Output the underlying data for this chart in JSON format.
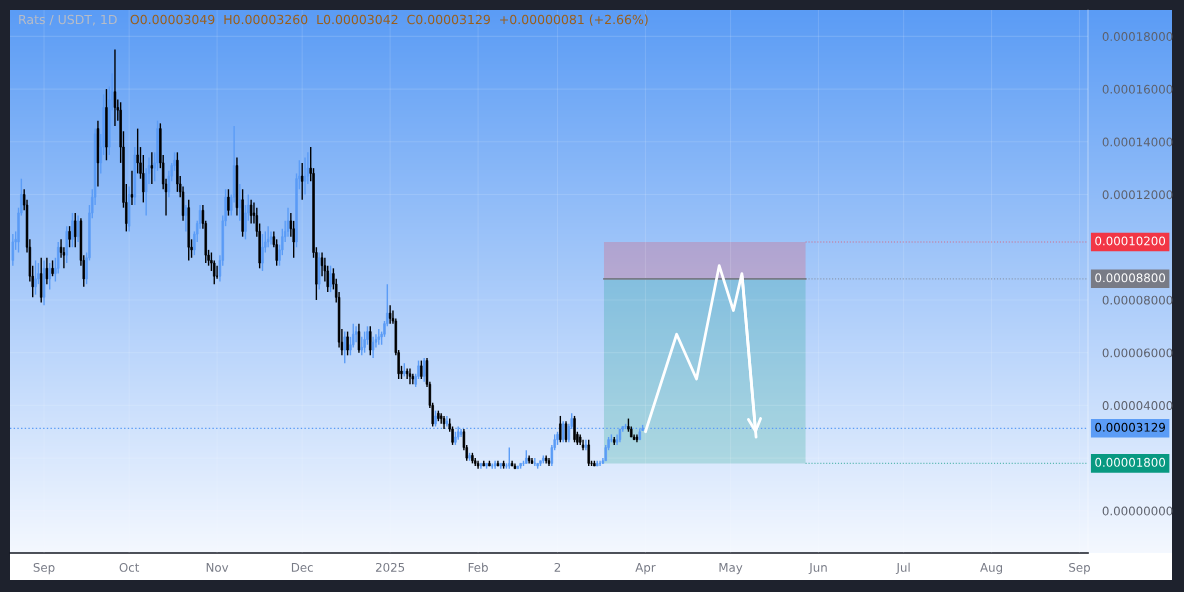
{
  "chart_data": {
    "type": "candlestick",
    "title": "Rats / USDT, 1D",
    "subtitle": "O0.00003049  H0.00003260  L0.00003042  C0.00003129  +0.00000081 (+2.66%)",
    "colors": [
      "#5b9cf6",
      "#5b9cf6",
      "#5b9cf6",
      "#5b9cf6",
      "#000000",
      "#000000",
      "#000000",
      "#000000",
      "#5b9cf6",
      "#5b9cf6",
      "#000000",
      "#5b9cf6",
      "#000000",
      "#5b9cf6",
      "#000000",
      "#5b9cf6",
      "#5b9cf6",
      "#000000",
      "#000000",
      "#5b9cf6",
      "#000000",
      "#5b9cf6",
      "#000000",
      "#5b9cf6",
      "#000000",
      "#000000",
      "#5b9cf6",
      "#5b9cf6",
      "#5b9cf6",
      "#5b9cf6",
      "#000000",
      "#5b9cf6",
      "#5b9cf6",
      "#000000",
      "#5b9cf6",
      "#5b9cf6",
      "#000000",
      "#000000",
      "#000000",
      "#000000",
      "#000000",
      "#5b9cf6",
      "#000000",
      "#5b9cf6",
      "#000000",
      "#000000",
      "#000000",
      "#5b9cf6",
      "#5b9cf6",
      "#000000",
      "#5b9cf6",
      "#5b9cf6",
      "#000000",
      "#000000",
      "#000000",
      "#5b9cf6",
      "#5b9cf6",
      "#5b9cf6",
      "#000000",
      "#000000",
      "#000000",
      "#5b9cf6",
      "#000000",
      "#000000",
      "#5b9cf6",
      "#5b9cf6",
      "#5b9cf6",
      "#000000",
      "#000000",
      "#000000",
      "#000000",
      "#000000",
      "#000000",
      "#5b9cf6",
      "#5b9cf6",
      "#5b9cf6",
      "#000000",
      "#5b9cf6",
      "#5b9cf6",
      "#000000",
      "#5b9cf6",
      "#000000",
      "#5b9cf6",
      "#5b9cf6",
      "#000000",
      "#000000",
      "#000000",
      "#000000",
      "#5b9cf6",
      "#5b9cf6",
      "#5b9cf6",
      "#5b9cf6",
      "#000000",
      "#000000",
      "#5b9cf6",
      "#5b9cf6",
      "#5b9cf6",
      "#5b9cf6",
      "#000000",
      "#000000",
      "#5b9cf6",
      "#5b9cf6",
      "#000000",
      "#5b9cf6",
      "#5b9cf6",
      "#000000",
      "#000000",
      "#000000",
      "#5b9cf6",
      "#000000",
      "#000000",
      "#000000",
      "#5b9cf6",
      "#000000",
      "#000000",
      "#000000",
      "#000000",
      "#5b9cf6",
      "#000000",
      "#5b9cf6",
      "#5b9cf6",
      "#5b9cf6",
      "#000000",
      "#5b9cf6",
      "#5b9cf6",
      "#5b9cf6",
      "#000000",
      "#5b9cf6",
      "#5b9cf6",
      "#5b9cf6",
      "#5b9cf6",
      "#5b9cf6",
      "#5b9cf6",
      "#000000",
      "#000000",
      "#000000",
      "#000000",
      "#000000",
      "#5b9cf6",
      "#000000",
      "#000000",
      "#000000",
      "#5b9cf6",
      "#5b9cf6",
      "#000000",
      "#5b9cf6",
      "#000000",
      "#000000",
      "#000000",
      "#5b9cf6",
      "#000000",
      "#000000",
      "#000000",
      "#5b9cf6",
      "#000000",
      "#000000",
      "#5b9cf6",
      "#5b9cf6",
      "#5b9cf6",
      "#000000",
      "#000000",
      "#5b9cf6",
      "#000000",
      "#000000",
      "#000000",
      "#5b9cf6",
      "#000000",
      "#5b9cf6",
      "#000000",
      "#5b9cf6",
      "#5b9cf6",
      "#000000",
      "#5b9cf6",
      "#000000",
      "#5b9cf6",
      "#5b9cf6",
      "#000000",
      "#000000",
      "#5b9cf6",
      "#5b9cf6",
      "#5b9cf6",
      "#5b9cf6",
      "#000000",
      "#000000",
      "#5b9cf6",
      "#5b9cf6",
      "#5b9cf6",
      "#5b9cf6",
      "#000000",
      "#000000",
      "#5b9cf6",
      "#5b9cf6",
      "#5b9cf6",
      "#000000",
      "#5b9cf6",
      "#000000",
      "#5b9cf6",
      "#5b9cf6",
      "#000000",
      "#000000",
      "#000000",
      "#000000",
      "#5b9cf6",
      "#000000",
      "#000000",
      "#000000",
      "#5b9cf6",
      "#5b9cf6",
      "#5b9cf6",
      "#5b9cf6",
      "#5b9cf6",
      "#5b9cf6",
      "#000000",
      "#5b9cf6",
      "#5b9cf6",
      "#5b9cf6",
      "#5b9cf6",
      "#000000",
      "#000000",
      "#000000",
      "#000000",
      "#5b9cf6",
      "#5b9cf6"
    ],
    "x": [
      "2024-08-21",
      "2024-08-22",
      "2024-08-23",
      "2024-08-24",
      "2024-08-25",
      "2024-08-26",
      "2024-08-27",
      "2024-08-28",
      "2024-08-29",
      "2024-08-30",
      "2024-08-31",
      "2024-09-01",
      "2024-09-02",
      "2024-09-03",
      "2024-09-04",
      "2024-09-05",
      "2024-09-06",
      "2024-09-07",
      "2024-09-08",
      "2024-09-09",
      "2024-09-10",
      "2024-09-11",
      "2024-09-12",
      "2024-09-13",
      "2024-09-14",
      "2024-09-15",
      "2024-09-16",
      "2024-09-17",
      "2024-09-18",
      "2024-09-19",
      "2024-09-20",
      "2024-09-21",
      "2024-09-22",
      "2024-09-23",
      "2024-09-24",
      "2024-09-25",
      "2024-09-26",
      "2024-09-27",
      "2024-09-28",
      "2024-09-29",
      "2024-09-30",
      "2024-10-01",
      "2024-10-02",
      "2024-10-03",
      "2024-10-04",
      "2024-10-05",
      "2024-10-06",
      "2024-10-07",
      "2024-10-08",
      "2024-10-09",
      "2024-10-10",
      "2024-10-11",
      "2024-10-12",
      "2024-10-13",
      "2024-10-14",
      "2024-10-15",
      "2024-10-16",
      "2024-10-17",
      "2024-10-18",
      "2024-10-19",
      "2024-10-20",
      "2024-10-21",
      "2024-10-22",
      "2024-10-23",
      "2024-10-24",
      "2024-10-25",
      "2024-10-26",
      "2024-10-27",
      "2024-10-28",
      "2024-10-29",
      "2024-10-30",
      "2024-10-31",
      "2024-11-01",
      "2024-11-02",
      "2024-11-03",
      "2024-11-04",
      "2024-11-05",
      "2024-11-06",
      "2024-11-07",
      "2024-11-08",
      "2024-11-09",
      "2024-11-10",
      "2024-11-11",
      "2024-11-12",
      "2024-11-13",
      "2024-11-14",
      "2024-11-15",
      "2024-11-16",
      "2024-11-17",
      "2024-11-18",
      "2024-11-19",
      "2024-11-20",
      "2024-11-21",
      "2024-11-22",
      "2024-11-23",
      "2024-11-24",
      "2024-11-25",
      "2024-11-26",
      "2024-11-27",
      "2024-11-28",
      "2024-11-29",
      "2024-11-30",
      "2024-12-01",
      "2024-12-02",
      "2024-12-03",
      "2024-12-04",
      "2024-12-05",
      "2024-12-06",
      "2024-12-07",
      "2024-12-08",
      "2024-12-09",
      "2024-12-10",
      "2024-12-11",
      "2024-12-12",
      "2024-12-13",
      "2024-12-14",
      "2024-12-15",
      "2024-12-16",
      "2024-12-17",
      "2024-12-18",
      "2024-12-19",
      "2024-12-20",
      "2024-12-21",
      "2024-12-22",
      "2024-12-23",
      "2024-12-24",
      "2024-12-25",
      "2024-12-26",
      "2024-12-27",
      "2024-12-28",
      "2024-12-29",
      "2024-12-30",
      "2024-12-31",
      "2025-01-01",
      "2025-01-02",
      "2025-01-03",
      "2025-01-04",
      "2025-01-05",
      "2025-01-06",
      "2025-01-07",
      "2025-01-08",
      "2025-01-09",
      "2025-01-10",
      "2025-01-11",
      "2025-01-12",
      "2025-01-13",
      "2025-01-14",
      "2025-01-15",
      "2025-01-16",
      "2025-01-17",
      "2025-01-18",
      "2025-01-19",
      "2025-01-20",
      "2025-01-21",
      "2025-01-22",
      "2025-01-23",
      "2025-01-24",
      "2025-01-25",
      "2025-01-26",
      "2025-01-27",
      "2025-01-28",
      "2025-01-29",
      "2025-01-30",
      "2025-01-31",
      "2025-02-01",
      "2025-02-02",
      "2025-02-03",
      "2025-02-04",
      "2025-02-05",
      "2025-02-06",
      "2025-02-07",
      "2025-02-08",
      "2025-02-09",
      "2025-02-10",
      "2025-02-11",
      "2025-02-12",
      "2025-02-13",
      "2025-02-14",
      "2025-02-15",
      "2025-02-16",
      "2025-02-17",
      "2025-02-18",
      "2025-02-19",
      "2025-02-20",
      "2025-02-21",
      "2025-02-22",
      "2025-02-23",
      "2025-02-24",
      "2025-02-25",
      "2025-02-26",
      "2025-02-27",
      "2025-02-28",
      "2025-03-01",
      "2025-03-02",
      "2025-03-03",
      "2025-03-04",
      "2025-03-05",
      "2025-03-06",
      "2025-03-07",
      "2025-03-08",
      "2025-03-09",
      "2025-03-10",
      "2025-03-11",
      "2025-03-12",
      "2025-03-13",
      "2025-03-14",
      "2025-03-15",
      "2025-03-16",
      "2025-03-17",
      "2025-03-18",
      "2025-03-19",
      "2025-03-20",
      "2025-03-21",
      "2025-03-22",
      "2025-03-23",
      "2025-03-24",
      "2025-03-25",
      "2025-03-26",
      "2025-03-27",
      "2025-03-28",
      "2025-03-29",
      "2025-03-30",
      "2025-03-31"
    ],
    "ohlc": [
      [
        9.5e-05,
        0.000105,
        9.3e-05,
        0.000102
      ],
      [
        0.000102,
        0.000106,
        9.9e-05,
        0.000103
      ],
      [
        0.000102,
        0.000115,
        9.8e-05,
        0.000113
      ],
      [
        0.000113,
        0.000126,
        0.000112,
        0.00012
      ],
      [
        0.00012,
        0.000122,
        0.000114,
        0.000116
      ],
      [
        0.000116,
        0.000118,
        9.8e-05,
        0.0001
      ],
      [
        0.0001,
        0.000103,
        8.7e-05,
        8.9e-05
      ],
      [
        8.9e-05,
        9.3e-05,
        8.1e-05,
        8.5e-05
      ],
      [
        8.5e-05,
        9.5e-05,
        8.2e-05,
        8.8e-05
      ],
      [
        8.8e-05,
        9.4e-05,
        8.6e-05,
        9e-05
      ],
      [
        9e-05,
        9.6e-05,
        7.9e-05,
        8.1e-05
      ],
      [
        8.1e-05,
        9.5e-05,
        7.8e-05,
        9.2e-05
      ],
      [
        9.2e-05,
        9.6e-05,
        8.6e-05,
        8.8e-05
      ],
      [
        8.8e-05,
        9.4e-05,
        8.4e-05,
        9.2e-05
      ],
      [
        9.2e-05,
        9.5e-05,
        8.9e-05,
        9e-05
      ],
      [
        9e-05,
        9.6e-05,
        8.7e-05,
        9.2e-05
      ],
      [
        9.2e-05,
        0.000102,
        9e-05,
        0.0001
      ],
      [
        0.0001,
        0.000103,
        9.6e-05,
        9.8e-05
      ],
      [
        9.8e-05,
        0.0001,
        9.2e-05,
        9.7e-05
      ],
      [
        9.7e-05,
        0.000108,
        9.4e-05,
        0.000106
      ],
      [
        0.000106,
        0.000108,
        0.0001,
        0.000103
      ],
      [
        0.000103,
        0.000113,
        0.0001,
        0.00011
      ],
      [
        0.00011,
        0.000113,
        0.0001,
        0.000104
      ],
      [
        0.000104,
        0.000112,
        0.000102,
        0.00011
      ],
      [
        0.00011,
        0.000111,
        9.3e-05,
        9.5e-05
      ],
      [
        9.5e-05,
        9.7e-05,
        8.5e-05,
        8.8e-05
      ],
      [
        8.8e-05,
        9.8e-05,
        8.6e-05,
        9.6e-05
      ],
      [
        9.6e-05,
        0.000116,
        9.5e-05,
        0.000113
      ],
      [
        0.000113,
        0.000122,
        0.000111,
        0.000119
      ],
      [
        0.000119,
        0.000145,
        0.000116,
        0.000143
      ],
      [
        0.000145,
        0.000148,
        0.000123,
        0.000132
      ],
      [
        0.000132,
        0.000143,
        0.000128,
        0.000138
      ],
      [
        0.000138,
        0.000158,
        0.000135,
        0.000153
      ],
      [
        0.000153,
        0.00016,
        0.000133,
        0.000138
      ],
      [
        0.000138,
        0.000161,
        0.000135,
        0.000156
      ],
      [
        0.000156,
        0.000166,
        0.000152,
        0.000159
      ],
      [
        0.000159,
        0.000175,
        0.000146,
        0.000153
      ],
      [
        0.000153,
        0.000156,
        0.000148,
        0.000152
      ],
      [
        0.000152,
        0.000155,
        0.000132,
        0.000138
      ],
      [
        0.000138,
        0.000144,
        0.000115,
        0.000117
      ],
      [
        0.000117,
        0.000124,
        0.000106,
        0.000109
      ],
      [
        0.000108,
        0.000123,
        0.000106,
        0.00012
      ],
      [
        0.00012,
        0.000129,
        0.000116,
        0.000119
      ],
      [
        0.000119,
        0.000138,
        0.000116,
        0.000135
      ],
      [
        0.000135,
        0.000145,
        0.000128,
        0.000132
      ],
      [
        0.000132,
        0.000138,
        0.000126,
        0.000128
      ],
      [
        0.000128,
        0.000135,
        0.000117,
        0.000121
      ],
      [
        0.000121,
        0.00013,
        0.000112,
        0.000128
      ],
      [
        0.000128,
        0.000134,
        0.000124,
        0.000131
      ],
      [
        0.000131,
        0.000136,
        0.000124,
        0.00013
      ],
      [
        0.00013,
        0.000136,
        0.000125,
        0.000132
      ],
      [
        0.000132,
        0.000148,
        0.000129,
        0.000145
      ],
      [
        0.000145,
        0.000147,
        0.00013,
        0.000132
      ],
      [
        0.000132,
        0.000135,
        0.000122,
        0.000124
      ],
      [
        0.000124,
        0.000126,
        0.000112,
        0.000121
      ],
      [
        0.000121,
        0.000129,
        0.000119,
        0.000127
      ],
      [
        0.000127,
        0.000132,
        0.000125,
        0.000131
      ],
      [
        0.000131,
        0.000136,
        0.000129,
        0.000133
      ],
      [
        0.000133,
        0.000136,
        0.000121,
        0.000124
      ],
      [
        0.000124,
        0.000127,
        0.000119,
        0.000121
      ],
      [
        0.000121,
        0.000123,
        0.00011,
        0.000112
      ],
      [
        0.000112,
        0.000116,
        0.000106,
        0.000115
      ],
      [
        0.000115,
        0.000118,
        9.5e-05,
        0.0001
      ],
      [
        0.0001,
        0.000103,
        9.6e-05,
        9.9e-05
      ],
      [
        9.9e-05,
        0.000106,
        9.7e-05,
        0.000105
      ],
      [
        0.000105,
        0.00011,
        0.000102,
        0.000109
      ],
      [
        0.000109,
        0.000116,
        0.000107,
        0.000114
      ],
      [
        0.000114,
        0.000116,
        0.000107,
        0.000109
      ],
      [
        0.000109,
        0.00011,
        9.4e-05,
        9.7e-05
      ],
      [
        9.7e-05,
        9.9e-05,
        9.3e-05,
        9.5e-05
      ],
      [
        9.5e-05,
        9.8e-05,
        9.1e-05,
        9.4e-05
      ],
      [
        9.4e-05,
        9.5e-05,
        8.6e-05,
        8.9e-05
      ],
      [
        8.9e-05,
        9.3e-05,
        8.8e-05,
        8.9e-05
      ],
      [
        8.9e-05,
        9.7e-05,
        8.7e-05,
        9.5e-05
      ],
      [
        9.5e-05,
        0.000112,
        9.3e-05,
        0.00011
      ],
      [
        0.00011,
        0.000122,
        0.000108,
        0.000119
      ],
      [
        0.000119,
        0.000122,
        0.000112,
        0.000114
      ],
      [
        0.000114,
        0.00012,
        0.000112,
        0.000119
      ],
      [
        0.000119,
        0.000146,
        0.000117,
        0.000131
      ],
      [
        0.000131,
        0.000134,
        0.000112,
        0.000115
      ],
      [
        0.000115,
        0.000124,
        0.00011,
        0.000118
      ],
      [
        0.000118,
        0.000122,
        0.000104,
        0.000106
      ],
      [
        0.000106,
        0.000116,
        0.000103,
        0.000113
      ],
      [
        0.000113,
        0.00012,
        0.00011,
        0.000116
      ],
      [
        0.000116,
        0.000118,
        0.000109,
        0.000112
      ],
      [
        0.000113,
        0.000117,
        0.000109,
        0.000112
      ],
      [
        0.000112,
        0.000115,
        0.000104,
        0.000106
      ],
      [
        0.000106,
        0.000109,
        9.2e-05,
        9.4e-05
      ],
      [
        9.4e-05,
        0.000105,
        9.1e-05,
        0.0001
      ],
      [
        0.0001,
        0.000106,
        9.8e-05,
        0.000102
      ],
      [
        0.000102,
        0.000108,
        0.0001,
        0.000103
      ],
      [
        0.000103,
        0.000106,
        0.000101,
        0.000104
      ],
      [
        0.000104,
        0.000106,
        0.0001,
        0.000101
      ],
      [
        0.000101,
        0.000103,
        9.3e-05,
        9.5e-05
      ],
      [
        9.5e-05,
        0.000101,
        9.3e-05,
        9.9e-05
      ],
      [
        9.9e-05,
        0.000107,
        9.7e-05,
        0.000104
      ],
      [
        0.000104,
        0.00011,
        0.000102,
        0.000106
      ],
      [
        0.000106,
        0.000115,
        0.000104,
        0.00011
      ],
      [
        0.00011,
        0.000113,
        0.000104,
        0.000107
      ],
      [
        0.000107,
        0.00011,
        9.6e-05,
        0.000102
      ],
      [
        0.000102,
        0.000128,
        0.0001,
        0.000126
      ],
      [
        0.000126,
        0.000133,
        0.000122,
        0.000127
      ],
      [
        0.000127,
        0.000132,
        0.000118,
        0.000125
      ],
      [
        0.000125,
        0.000134,
        0.00012,
        0.000127
      ],
      [
        0.000127,
        0.000136,
        0.000124,
        0.00013
      ],
      [
        0.00013,
        0.000138,
        0.000125,
        0.000128
      ],
      [
        0.000128,
        0.00013,
        9.6e-05,
        9.8e-05
      ],
      [
        9.8e-05,
        0.0001,
        8e-05,
        8.6e-05
      ],
      [
        8.6e-05,
        9.8e-05,
        8.4e-05,
        9.6e-05
      ],
      [
        9.6e-05,
        9.8e-05,
        8.9e-05,
        9.3e-05
      ],
      [
        9.3e-05,
        9.6e-05,
        8.7e-05,
        9.1e-05
      ],
      [
        9.1e-05,
        9.3e-05,
        8.3e-05,
        8.5e-05
      ],
      [
        8.5e-05,
        9.3e-05,
        8.3e-05,
        9e-05
      ],
      [
        9e-05,
        9.2e-05,
        8.4e-05,
        8.6e-05
      ],
      [
        8.6e-05,
        8.8e-05,
        7.9e-05,
        8.1e-05
      ],
      [
        8.1e-05,
        8.3e-05,
        6.2e-05,
        6.4e-05
      ],
      [
        6.4e-05,
        6.9e-05,
        5.9e-05,
        6.1e-05
      ],
      [
        6.1e-05,
        6.8e-05,
        5.6e-05,
        6.6e-05
      ],
      [
        6.6e-05,
        6.8e-05,
        5.9e-05,
        6.1e-05
      ],
      [
        6.1e-05,
        6.6e-05,
        5.9e-05,
        6.3e-05
      ],
      [
        6.3e-05,
        7.1e-05,
        6.2e-05,
        6.7e-05
      ],
      [
        6.7e-05,
        7e-05,
        6.4e-05,
        6.8e-05
      ],
      [
        6.8e-05,
        7.1e-05,
        6e-05,
        6.1e-05
      ],
      [
        6.1e-05,
        6.6e-05,
        5.9e-05,
        6.2e-05
      ],
      [
        6.2e-05,
        6.8e-05,
        6e-05,
        6.5e-05
      ],
      [
        6.5e-05,
        7e-05,
        6.3e-05,
        6.8e-05
      ],
      [
        6.8e-05,
        7e-05,
        5.9e-05,
        6.1e-05
      ],
      [
        6.1e-05,
        6.6e-05,
        5.8e-05,
        6.4e-05
      ],
      [
        6.4e-05,
        6.7e-05,
        6.2e-05,
        6.5e-05
      ],
      [
        6.5e-05,
        6.9e-05,
        6.3e-05,
        6.6e-05
      ],
      [
        6.6e-05,
        6.8e-05,
        6.3e-05,
        6.7e-05
      ],
      [
        6.7e-05,
        7.2e-05,
        6.6e-05,
        7.1e-05
      ],
      [
        7.1e-05,
        8.6e-05,
        7e-05,
        7.5e-05
      ],
      [
        7.5e-05,
        7.8e-05,
        7.1e-05,
        7.3e-05
      ],
      [
        7.3e-05,
        7.6e-05,
        7.1e-05,
        7.2e-05
      ],
      [
        7.2e-05,
        7.3e-05,
        5.9e-05,
        6e-05
      ],
      [
        6e-05,
        6.1e-05,
        5e-05,
        5.2e-05
      ],
      [
        5.3e-05,
        5.5e-05,
        5e-05,
        5.2e-05
      ],
      [
        5.2e-05,
        5.6e-05,
        5.1e-05,
        5.3e-05
      ],
      [
        5.3e-05,
        5.4e-05,
        5e-05,
        5.2e-05
      ],
      [
        5.2e-05,
        5.4e-05,
        4.8e-05,
        5.1e-05
      ],
      [
        5.1e-05,
        5.2e-05,
        4.8e-05,
        5e-05
      ],
      [
        4.8e-05,
        5.2e-05,
        4.7e-05,
        5.1e-05
      ],
      [
        5.1e-05,
        5.7e-05,
        5e-05,
        5.5e-05
      ],
      [
        5.5e-05,
        5.7e-05,
        5e-05,
        5.1e-05
      ],
      [
        5.1e-05,
        5.8e-05,
        4.9e-05,
        5.7e-05
      ],
      [
        5.7e-05,
        5.8e-05,
        4.7e-05,
        4.8e-05
      ],
      [
        4.8e-05,
        4.9e-05,
        3.9e-05,
        4e-05
      ],
      [
        4e-05,
        4.1e-05,
        3.2e-05,
        3.3e-05
      ],
      [
        3.3e-05,
        3.8e-05,
        3.2e-05,
        3.6e-05
      ],
      [
        3.7e-05,
        3.8e-05,
        3.4e-05,
        3.5e-05
      ],
      [
        3.6e-05,
        3.7e-05,
        3.3e-05,
        3.5e-05
      ],
      [
        3.5e-05,
        3.6e-05,
        3.1e-05,
        3.3e-05
      ],
      [
        3.3e-05,
        3.6e-05,
        3.2e-05,
        3.4e-05
      ],
      [
        3.3e-05,
        3.5e-05,
        3e-05,
        3.1e-05
      ],
      [
        3.1e-05,
        3.2e-05,
        2.5e-05,
        2.6e-05
      ],
      [
        2.6e-05,
        3e-05,
        2.5e-05,
        2.8e-05
      ],
      [
        2.8e-05,
        3.2e-05,
        2.7e-05,
        3e-05
      ],
      [
        2.9e-05,
        3.1e-05,
        2.8e-05,
        3e-05
      ],
      [
        3e-05,
        3.1e-05,
        2.3e-05,
        2.4e-05
      ],
      [
        2.4e-05,
        2.5e-05,
        1.9e-05,
        2e-05
      ],
      [
        2e-05,
        2.2e-05,
        1.9e-05,
        2.1e-05
      ],
      [
        2.1e-05,
        2.2e-05,
        1.8e-05,
        1.9e-05
      ],
      [
        1.9e-05,
        2e-05,
        1.7e-05,
        1.8e-05
      ],
      [
        1.8e-05,
        1.9e-05,
        1.6e-05,
        1.7e-05
      ],
      [
        1.7e-05,
        1.8e-05,
        1.6e-05,
        1.8e-05
      ],
      [
        1.8e-05,
        1.9e-05,
        1.7e-05,
        1.7e-05
      ],
      [
        1.7e-05,
        1.8e-05,
        1.6e-05,
        1.8e-05
      ],
      [
        1.8e-05,
        1.9e-05,
        1.7e-05,
        1.7e-05
      ],
      [
        1.7e-05,
        1.8e-05,
        1.6e-05,
        1.7e-05
      ],
      [
        1.7e-05,
        1.9e-05,
        1.6e-05,
        1.8e-05
      ],
      [
        1.8e-05,
        1.9e-05,
        1.7e-05,
        1.7e-05
      ],
      [
        1.7e-05,
        1.8e-05,
        1.6e-05,
        1.8e-05
      ],
      [
        1.8e-05,
        1.9e-05,
        1.6e-05,
        1.7e-05
      ],
      [
        1.7e-05,
        1.8e-05,
        1.6e-05,
        1.7e-05
      ],
      [
        1.7e-05,
        2.4e-05,
        1.6e-05,
        1.8e-05
      ],
      [
        1.8e-05,
        1.9e-05,
        1.7e-05,
        1.7e-05
      ],
      [
        1.7e-05,
        1.8e-05,
        1.6e-05,
        1.6e-05
      ],
      [
        1.6e-05,
        1.7e-05,
        1.6e-05,
        1.7e-05
      ],
      [
        1.7e-05,
        1.8e-05,
        1.6e-05,
        1.8e-05
      ],
      [
        1.8e-05,
        1.9e-05,
        1.7e-05,
        1.8e-05
      ],
      [
        1.8e-05,
        2.3e-05,
        1.8e-05,
        2e-05
      ],
      [
        2e-05,
        2.1e-05,
        1.8e-05,
        1.9e-05
      ],
      [
        1.9e-05,
        2e-05,
        1.8e-05,
        1.8e-05
      ],
      [
        1.8e-05,
        2e-05,
        1.7e-05,
        1.8e-05
      ],
      [
        1.7e-05,
        1.8e-05,
        1.6e-05,
        1.8e-05
      ],
      [
        1.8e-05,
        1.9e-05,
        1.7e-05,
        1.9e-05
      ],
      [
        1.9e-05,
        2.1e-05,
        1.8e-05,
        2e-05
      ],
      [
        2e-05,
        2.1e-05,
        1.8e-05,
        1.9e-05
      ],
      [
        1.9e-05,
        2e-05,
        1.7e-05,
        1.8e-05
      ],
      [
        1.8e-05,
        2.5e-05,
        1.7e-05,
        2.4e-05
      ],
      [
        2.4e-05,
        2.9e-05,
        2.3e-05,
        2.7e-05
      ],
      [
        2.7e-05,
        3e-05,
        2.5e-05,
        2.9e-05
      ],
      [
        3.3e-05,
        3.6e-05,
        2.6e-05,
        2.7e-05
      ],
      [
        2.7e-05,
        3.4e-05,
        2.6e-05,
        3.3e-05
      ],
      [
        3.3e-05,
        3.4e-05,
        2.6e-05,
        2.7e-05
      ],
      [
        2.7e-05,
        3.3e-05,
        2.6e-05,
        3.2e-05
      ],
      [
        3.2e-05,
        3.7e-05,
        3.1e-05,
        3.5e-05
      ],
      [
        3.5e-05,
        3.6e-05,
        2.6e-05,
        2.7e-05
      ],
      [
        2.9e-05,
        3e-05,
        2.5e-05,
        2.6e-05
      ],
      [
        2.8e-05,
        2.9e-05,
        2.5e-05,
        2.6e-05
      ],
      [
        2.5e-05,
        2.7e-05,
        2.3e-05,
        2.4e-05
      ],
      [
        2.4e-05,
        2.7e-05,
        2.3e-05,
        2.5e-05
      ],
      [
        2.5e-05,
        2.7e-05,
        1.7e-05,
        1.8e-05
      ],
      [
        1.8e-05,
        1.9e-05,
        1.7e-05,
        1.8e-05
      ],
      [
        1.8e-05,
        1.9e-05,
        1.7e-05,
        1.7e-05
      ],
      [
        1.7e-05,
        1.9e-05,
        1.7e-05,
        1.8e-05
      ],
      [
        1.8e-05,
        1.9e-05,
        1.7e-05,
        1.8e-05
      ],
      [
        1.8e-05,
        2e-05,
        1.8e-05,
        1.9e-05
      ],
      [
        1.9e-05,
        2.5e-05,
        1.9e-05,
        2.4e-05
      ],
      [
        2.4e-05,
        2.8e-05,
        2.3e-05,
        2.7e-05
      ],
      [
        2.7e-05,
        2.9e-05,
        2.6e-05,
        2.7e-05
      ],
      [
        2.7e-05,
        2.8e-05,
        2.5e-05,
        2.6e-05
      ],
      [
        2.6e-05,
        2.9e-05,
        2.5e-05,
        2.7e-05
      ],
      [
        2.7e-05,
        3.1e-05,
        2.6e-05,
        3.1e-05
      ],
      [
        3.1e-05,
        3.2e-05,
        3e-05,
        3.2e-05
      ],
      [
        3.2e-05,
        3.3e-05,
        3.1e-05,
        3.2e-05
      ],
      [
        3.2e-05,
        3.5e-05,
        3e-05,
        3.1e-05
      ],
      [
        3.1e-05,
        3.2e-05,
        2.8e-05,
        2.8e-05
      ],
      [
        2.8e-05,
        2.9e-05,
        2.7e-05,
        2.7e-05
      ],
      [
        2.8e-05,
        2.9e-05,
        2.6e-05,
        2.7e-05
      ],
      [
        2.7e-05,
        3.1e-05,
        2.7e-05,
        3e-05
      ],
      [
        3.049e-05,
        3.26e-05,
        3.042e-05,
        3.129e-05
      ]
    ],
    "series": [
      {
        "type": "line",
        "color": "#ffffff",
        "x": [
          "2025-04-01",
          "2025-04-12",
          "2025-04-19",
          "2025-04-27",
          "2025-05-02",
          "2025-05-05",
          "2025-05-10"
        ],
        "values": [
          3e-05,
          6.7e-05,
          5e-05,
          9.3e-05,
          7.6e-05,
          9e-05,
          2.8e-05
        ]
      }
    ],
    "bands": [
      {
        "axis": "y",
        "from": 8.8e-05,
        "to": 0.000102,
        "label": "0.00010200",
        "color": "#f23645"
      },
      {
        "axis": "y",
        "from": 1.8e-05,
        "to": 8.8e-05,
        "label": "0.00001800",
        "color": "#089981"
      }
    ],
    "ref_lines": [
      {
        "axis": "y",
        "value": 8.8e-05,
        "label": "0.00008800",
        "color": "#787b86",
        "line_style": "solid"
      },
      {
        "axis": "y",
        "value": 3.129e-05,
        "label": "0.00003129",
        "color": "#5b9cf6",
        "line_style": "dotted"
      }
    ],
    "xlim": [
      "2024-08-20",
      "2025-09-04"
    ],
    "xticks": [
      {
        "value": "2024-09-01",
        "label": "Sep"
      },
      {
        "value": "2024-10-01",
        "label": "Oct"
      },
      {
        "value": "2024-11-01",
        "label": "Nov"
      },
      {
        "value": "2024-12-01",
        "label": "Dec"
      },
      {
        "value": "2025-01-01",
        "label": "2025"
      },
      {
        "value": "2025-02-01",
        "label": "Feb"
      },
      {
        "value": "2025-03-01",
        "label": "2"
      },
      {
        "value": "2025-04-01",
        "label": "Apr"
      },
      {
        "value": "2025-05-01",
        "label": "May"
      },
      {
        "value": "2025-06-01",
        "label": "Jun"
      },
      {
        "value": "2025-07-01",
        "label": "Jul"
      },
      {
        "value": "2025-08-01",
        "label": "Aug"
      },
      {
        "value": "2025-09-01",
        "label": "Sep"
      }
    ],
    "ylim": [
      -1.6e-05,
      0.00019
    ],
    "yticks": [
      {
        "value": 0,
        "label": "0.00000000"
      },
      {
        "value": 2e-05,
        "label": null
      },
      {
        "value": 4e-05,
        "label": "0.00004000"
      },
      {
        "value": 6e-05,
        "label": "0.00006000"
      },
      {
        "value": 8e-05,
        "label": "0.00008000"
      },
      {
        "value": 0.00012,
        "label": "0.00012000"
      },
      {
        "value": 0.00014,
        "label": "0.00014000"
      },
      {
        "value": 0.00016,
        "label": "0.00016000"
      },
      {
        "value": 0.00018,
        "label": "0.00018000"
      }
    ],
    "grid": true
  }
}
